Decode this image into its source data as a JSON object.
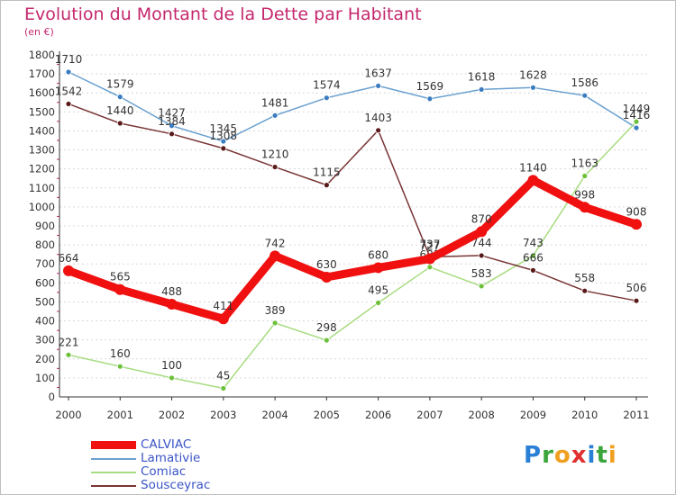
{
  "title": "Evolution du Montant de la Dette par Habitant",
  "subtitle": "(en €)",
  "logo": {
    "text": "Proxiti",
    "letters": [
      {
        "ch": "P",
        "color": "#2a7fd6"
      },
      {
        "ch": "r",
        "color": "#3aa53a"
      },
      {
        "ch": "o",
        "color": "#f0a020"
      },
      {
        "ch": "x",
        "color": "#e03030"
      },
      {
        "ch": "i",
        "color": "#2a7fd6"
      },
      {
        "ch": "t",
        "color": "#3aa53a"
      },
      {
        "ch": "i",
        "color": "#f0a020"
      }
    ]
  },
  "chart_data": {
    "type": "line",
    "title": "Evolution du Montant de la Dette par Habitant",
    "subtitle": "(en €)",
    "xlabel": "",
    "ylabel": "",
    "categories": [
      "2000",
      "2001",
      "2002",
      "2003",
      "2004",
      "2005",
      "2006",
      "2007",
      "2008",
      "2009",
      "2010",
      "2011"
    ],
    "ylim": [
      0,
      1800
    ],
    "yticks": [
      0,
      100,
      200,
      300,
      400,
      500,
      600,
      700,
      800,
      900,
      1000,
      1100,
      1200,
      1300,
      1400,
      1500,
      1600,
      1700,
      1800
    ],
    "grid": "horizontal",
    "legend_position": "bottom-left",
    "series": [
      {
        "name": "Lamativie",
        "color": "#6aa0cf",
        "marker": "#3a7cc0",
        "width": "thin",
        "values": [
          1710,
          1579,
          1427,
          1345,
          1481,
          1574,
          1637,
          1569,
          1618,
          1628,
          1586,
          1416
        ],
        "labels": [
          "1710",
          "1579",
          "1427",
          "1345",
          "1481",
          "1574",
          "1637",
          "1569",
          "1618",
          "1628",
          "1586",
          "1416"
        ]
      },
      {
        "name": "Comiac",
        "color": "#a8dc80",
        "marker": "#6cc03a",
        "width": "thin",
        "values": [
          221,
          160,
          100,
          45,
          389,
          298,
          495,
          683,
          583,
          743,
          1163,
          1449
        ],
        "labels": [
          "221",
          "160",
          "100",
          "45",
          "389",
          "298",
          "495",
          "683",
          "583",
          "743",
          "1163",
          "1449"
        ]
      },
      {
        "name": "Sousceyrac",
        "color": "#7a3535",
        "marker": "#5a1a1a",
        "width": "thin",
        "values": [
          1542,
          1440,
          1384,
          1308,
          1210,
          1115,
          1403,
          737,
          744,
          666,
          558,
          506
        ],
        "labels": [
          "1542",
          "1440",
          "1384",
          "1308",
          "1210",
          "1115",
          "1403",
          "737",
          "744",
          "666",
          "558",
          "506"
        ]
      },
      {
        "name": "CALVIAC",
        "color": "#f01010",
        "marker": "#f01010",
        "width": "thick",
        "values": [
          664,
          565,
          488,
          411,
          742,
          630,
          680,
          727,
          870,
          1140,
          998,
          908
        ],
        "labels": [
          "664",
          "565",
          "488",
          "411",
          "742",
          "630",
          "680",
          "727",
          "870",
          "1140",
          "998",
          "908"
        ]
      }
    ],
    "legend_order": [
      "CALVIAC",
      "Lamativie",
      "Comiac",
      "Sousceyrac"
    ]
  }
}
